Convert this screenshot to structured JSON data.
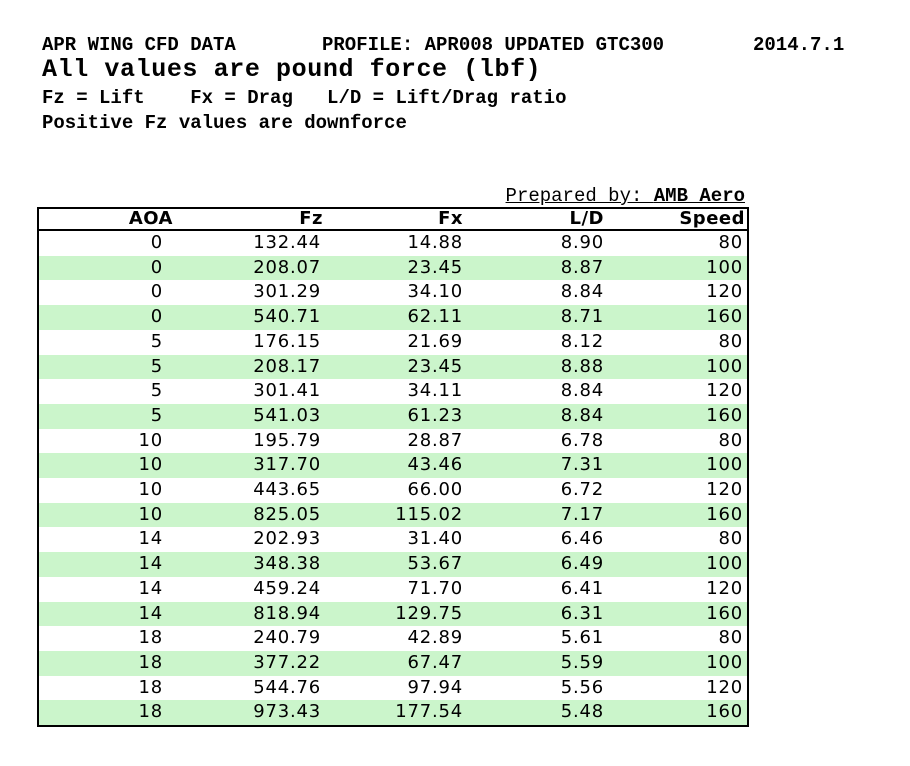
{
  "page": {
    "title_line": {
      "title": "APR WING CFD DATA",
      "profile": "PROFILE: APR008 UPDATED GTC300",
      "date": "2014.7.1"
    },
    "units_note": "All values are pound force (lbf)",
    "legend_note": "Fz = Lift    Fx = Drag   L/D = Lift/Drag ratio",
    "downforce_note": "Positive Fz values are downforce",
    "prepared_by": {
      "label": "Prepared by: ",
      "value": "AMB Aero"
    }
  },
  "table": {
    "columns": [
      "AOA",
      "Fz",
      "Fx",
      "L/D",
      "Speed"
    ],
    "rows": [
      [
        "0",
        "132.44",
        "14.88",
        "8.90",
        "80"
      ],
      [
        "0",
        "208.07",
        "23.45",
        "8.87",
        "100"
      ],
      [
        "0",
        "301.29",
        "34.10",
        "8.84",
        "120"
      ],
      [
        "0",
        "540.71",
        "62.11",
        "8.71",
        "160"
      ],
      [
        "5",
        "176.15",
        "21.69",
        "8.12",
        "80"
      ],
      [
        "5",
        "208.17",
        "23.45",
        "8.88",
        "100"
      ],
      [
        "5",
        "301.41",
        "34.11",
        "8.84",
        "120"
      ],
      [
        "5",
        "541.03",
        "61.23",
        "8.84",
        "160"
      ],
      [
        "10",
        "195.79",
        "28.87",
        "6.78",
        "80"
      ],
      [
        "10",
        "317.70",
        "43.46",
        "7.31",
        "100"
      ],
      [
        "10",
        "443.65",
        "66.00",
        "6.72",
        "120"
      ],
      [
        "10",
        "825.05",
        "115.02",
        "7.17",
        "160"
      ],
      [
        "14",
        "202.93",
        "31.40",
        "6.46",
        "80"
      ],
      [
        "14",
        "348.38",
        "53.67",
        "6.49",
        "100"
      ],
      [
        "14",
        "459.24",
        "71.70",
        "6.41",
        "120"
      ],
      [
        "14",
        "818.94",
        "129.75",
        "6.31",
        "160"
      ],
      [
        "18",
        "240.79",
        "42.89",
        "5.61",
        "80"
      ],
      [
        "18",
        "377.22",
        "67.47",
        "5.59",
        "100"
      ],
      [
        "18",
        "544.76",
        "97.94",
        "5.56",
        "120"
      ],
      [
        "18",
        "973.43",
        "177.54",
        "5.48",
        "160"
      ]
    ]
  },
  "colors": {
    "row_stripe_green": "#cbf5cb",
    "border": "#000000",
    "text": "#000000",
    "background": "#ffffff"
  }
}
